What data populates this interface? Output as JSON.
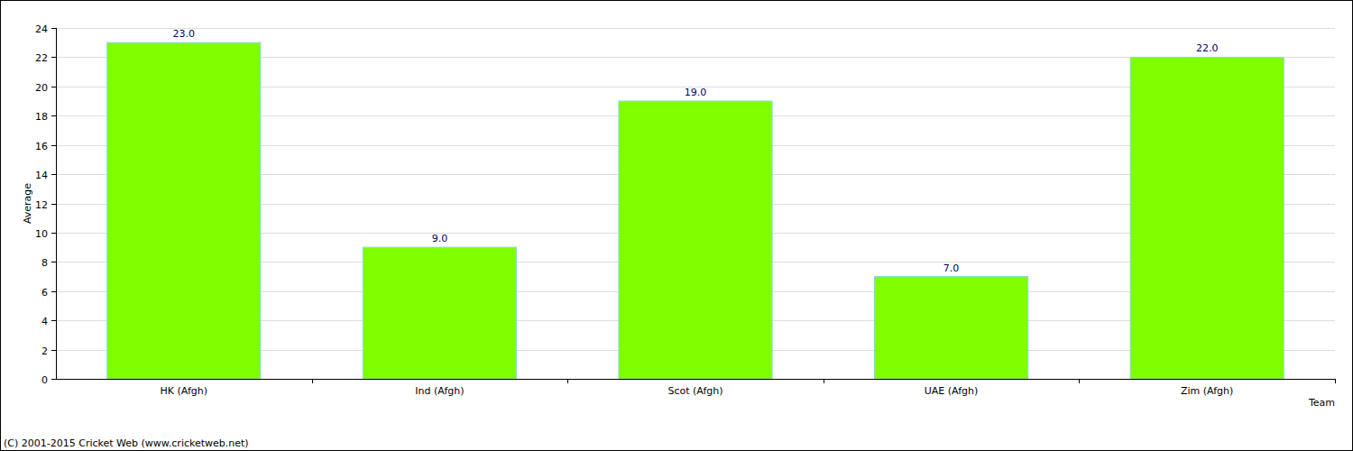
{
  "chart_data": {
    "type": "bar",
    "x_label": "Team",
    "y_label": "Average",
    "annotations": [
      "(C) 2001-2015 Cricket Web (www.cricketweb.net)"
    ],
    "categories": [
      "HK (Afgh)",
      "Ind (Afgh)",
      "Scot (Afgh)",
      "UAE (Afgh)",
      "Zim (Afgh)"
    ],
    "values": [
      23,
      9,
      19,
      7,
      22
    ],
    "value_labels": [
      "23.0",
      "9.0",
      "19.0",
      "7.0",
      "22.0"
    ],
    "color": "#80ff00",
    "ylim": [
      0,
      24
    ],
    "yticks": [
      0,
      2,
      4,
      6,
      8,
      10,
      12,
      14,
      16,
      18,
      20,
      22,
      24
    ],
    "grid": true,
    "data_labels": true
  }
}
